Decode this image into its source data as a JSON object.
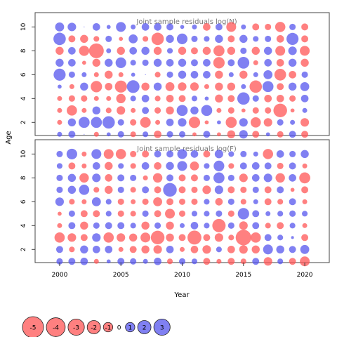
{
  "chart_data": {
    "type": "scatter",
    "subtype": "bubble-residuals",
    "xlabel": "Year",
    "ylabel": "Age",
    "xlim": [
      1998,
      2022
    ],
    "ylim": [
      0.9,
      11.2
    ],
    "x_ticks": [
      2000,
      2005,
      2010,
      2015,
      2020
    ],
    "y_ticks": [
      2,
      4,
      6,
      8,
      10
    ],
    "years": [
      2000,
      2001,
      2002,
      2003,
      2004,
      2005,
      2006,
      2007,
      2008,
      2009,
      2010,
      2011,
      2012,
      2013,
      2014,
      2015,
      2016,
      2017,
      2018,
      2019,
      2020
    ],
    "ages": [
      1,
      2,
      3,
      4,
      5,
      6,
      7,
      8,
      9,
      10
    ],
    "positive_color": "#5555ee",
    "negative_color": "#ff5555",
    "panels": [
      {
        "title": "Joint sample residuals log(N)",
        "residuals": [
          [
            0.3,
            0.6,
            0.0,
            -0.3,
            0.2,
            0.5,
            -0.4,
            0.4,
            -0.7,
            0.5,
            0.5,
            -0.2,
            0.6,
            -0.2,
            -0.8,
            0.9,
            -0.6,
            0.2,
            -0.5,
            0.6,
            -0.6
          ],
          [
            -0.3,
            0.8,
            1.5,
            1.5,
            1.9,
            0.5,
            -0.5,
            -1.4,
            -0.3,
            0.7,
            0.9,
            -1.6,
            -0.2,
            0.2,
            -1.5,
            0.9,
            -1.3,
            -0.9,
            0.5,
            0.3,
            -0.9
          ],
          [
            -0.3,
            -1.3,
            -0.3,
            0.8,
            -0.4,
            -0.9,
            -0.3,
            0.6,
            -0.5,
            -0.8,
            1.5,
            0.8,
            1.5,
            -0.3,
            -0.5,
            -0.2,
            -0.5,
            -0.5,
            -2.3,
            -0.2,
            0.3
          ],
          [
            -0.3,
            -0.5,
            -0.5,
            -0.3,
            -0.3,
            -1.1,
            0.4,
            0.7,
            -0.4,
            -0.7,
            -0.6,
            0.4,
            0.2,
            -0.8,
            -0.6,
            1.9,
            0.5,
            -0.7,
            -0.7,
            -0.5,
            0.7
          ],
          [
            0.2,
            -0.3,
            0.8,
            -1.6,
            -0.7,
            -1.8,
            2.0,
            -0.8,
            0.8,
            -1.0,
            -0.9,
            -0.9,
            -0.3,
            -0.8,
            -0.8,
            0.3,
            -1.9,
            1.5,
            -0.6,
            0.8,
            1.0
          ],
          [
            1.8,
            0.5,
            0.3,
            -0.3,
            -0.8,
            -0.3,
            0.2,
            0.0,
            -0.4,
            0.5,
            0.8,
            0.7,
            0.7,
            -0.8,
            0.3,
            -0.8,
            0.3,
            1.0,
            -1.7,
            -0.7,
            0.5
          ],
          [
            0.8,
            0.7,
            -0.2,
            -0.8,
            0.8,
            1.4,
            0.4,
            0.5,
            0.8,
            0.7,
            0.8,
            0.6,
            0.7,
            -1.6,
            0.6,
            1.7,
            -0.3,
            0.7,
            -0.7,
            0.8,
            -0.8
          ],
          [
            -0.8,
            0.7,
            -1.3,
            -2.7,
            0.3,
            -0.8,
            0.7,
            0.8,
            -0.8,
            0.4,
            -0.8,
            -0.6,
            -0.8,
            -1.5,
            -0.8,
            0.5,
            -0.8,
            0.8,
            -1.2,
            0.9,
            -1.2
          ],
          [
            1.9,
            -0.6,
            -0.8,
            -0.4,
            0.5,
            -0.2,
            1.0,
            -0.4,
            -1.9,
            0.8,
            1.4,
            0.5,
            0.4,
            0.8,
            -0.6,
            0.8,
            0.4,
            0.5,
            -0.7,
            1.8,
            -0.6
          ],
          [
            1.0,
            0.9,
            0.0,
            0.7,
            0.2,
            1.2,
            0.3,
            0.7,
            0.7,
            0.6,
            0.2,
            0.3,
            -0.7,
            0.6,
            -1.2,
            0.3,
            -0.6,
            -0.5,
            -1.3,
            0.5,
            -0.6
          ]
        ]
      },
      {
        "title": "Joint sample residuals log(F)",
        "residuals": [
          [
            0.5,
            0.6,
            0.7,
            -0.3,
            0.2,
            0.6,
            0.5,
            0.3,
            0.7,
            -0.4,
            0.5,
            0.4,
            -0.6,
            -0.3,
            -0.6,
            -0.4,
            0.6,
            -0.9,
            0.4,
            -0.6,
            -1.2
          ],
          [
            0.6,
            -0.4,
            0.8,
            0.7,
            0.7,
            -0.3,
            -0.6,
            -0.8,
            -0.9,
            0.7,
            -0.3,
            -0.7,
            -0.9,
            0.4,
            -0.7,
            -0.9,
            -0.8,
            1.2,
            0.8,
            0.6,
            1.0
          ],
          [
            -1.3,
            -0.9,
            -0.6,
            0.9,
            -1.3,
            -0.9,
            -0.8,
            -1.2,
            -2.3,
            -0.8,
            -0.6,
            -2.4,
            -0.6,
            -0.9,
            -0.4,
            -3.0,
            -1.3,
            0.6,
            0.4,
            0.1,
            -0.6
          ],
          [
            -0.3,
            0.6,
            -0.8,
            0.5,
            0.6,
            0.6,
            0.4,
            -0.8,
            0.5,
            -0.8,
            0.3,
            0.7,
            0.4,
            -2.2,
            0.5,
            -0.9,
            0.6,
            -0.4,
            -0.6,
            0.4,
            -0.3
          ],
          [
            -0.2,
            0.5,
            -0.6,
            -0.6,
            0.4,
            -0.5,
            -0.4,
            0.5,
            -0.6,
            -1.2,
            -0.5,
            0.4,
            0.4,
            0.5,
            -0.5,
            1.6,
            0.6,
            0.3,
            0.4,
            0.5,
            0.4
          ],
          [
            0.9,
            -0.4,
            -0.3,
            1.0,
            0.4,
            -0.5,
            -0.3,
            -0.5,
            -1.0,
            -0.6,
            -0.5,
            -0.5,
            0.4,
            -0.7,
            0.5,
            -0.4,
            0.3,
            -0.6,
            -0.4,
            0.6,
            -0.3
          ],
          [
            0.5,
            0.8,
            1.3,
            -0.4,
            -0.8,
            0.5,
            -0.4,
            0.6,
            -0.6,
            2.3,
            -0.6,
            -0.5,
            -0.9,
            0.9,
            -0.6,
            -0.5,
            0.5,
            -0.6,
            0.6,
            -0.2,
            -0.6
          ],
          [
            0.5,
            0.8,
            -1.1,
            0.9,
            -0.7,
            0.6,
            0.5,
            -0.3,
            -1.1,
            0.6,
            -0.6,
            -0.6,
            0.5,
            1.5,
            0.5,
            -0.9,
            0.7,
            0.9,
            -1.1,
            0.7,
            -1.5
          ],
          [
            0.4,
            -0.6,
            -0.3,
            0.7,
            -0.8,
            0.4,
            -0.4,
            0.7,
            -0.7,
            0.8,
            1.2,
            -1.0,
            0.4,
            1.4,
            -0.4,
            0.6,
            0.7,
            0.6,
            -0.5,
            0.6,
            -0.3
          ],
          [
            0.5,
            1.4,
            -0.3,
            1.2,
            -1.2,
            -1.3,
            -0.5,
            -0.6,
            0.6,
            0.6,
            1.2,
            0.7,
            -0.6,
            0.9,
            0.4,
            0.5,
            0.3,
            -1.3,
            0.7,
            0.5,
            0.8
          ]
        ]
      }
    ],
    "legend": {
      "placement": "bottom-left",
      "entries": [
        "-5",
        "-4",
        "-3",
        "-2",
        "-1",
        "0",
        "1",
        "2",
        "3"
      ],
      "values": [
        -5,
        -4,
        -3,
        -2,
        -1,
        0,
        1,
        2,
        3
      ]
    }
  }
}
